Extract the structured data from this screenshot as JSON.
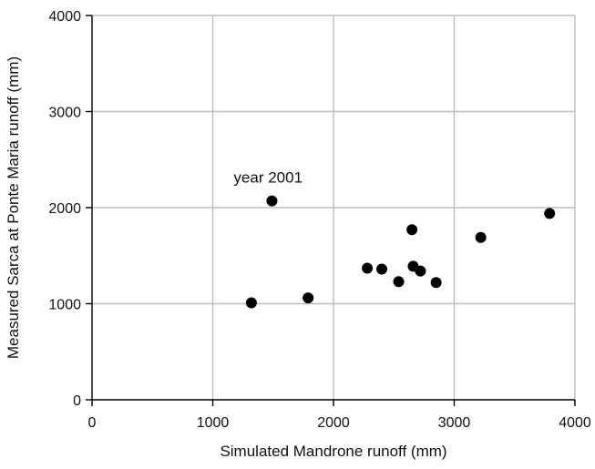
{
  "chart_data": {
    "type": "scatter",
    "xlabel": "Simulated Mandrone runoff (mm)",
    "ylabel": "Measured Sarca at Ponte Maria runoff (mm)",
    "xlim": [
      0,
      4000
    ],
    "ylim": [
      0,
      4000
    ],
    "xticks": [
      0,
      1000,
      2000,
      3000,
      4000
    ],
    "yticks": [
      0,
      1000,
      2000,
      3000,
      4000
    ],
    "grid": true,
    "marker_color": "#000000",
    "points": [
      {
        "x": 1320,
        "y": 1010
      },
      {
        "x": 1490,
        "y": 2070
      },
      {
        "x": 1790,
        "y": 1060
      },
      {
        "x": 2280,
        "y": 1370
      },
      {
        "x": 2400,
        "y": 1360
      },
      {
        "x": 2540,
        "y": 1230
      },
      {
        "x": 2650,
        "y": 1770
      },
      {
        "x": 2660,
        "y": 1390
      },
      {
        "x": 2720,
        "y": 1340
      },
      {
        "x": 2850,
        "y": 1220
      },
      {
        "x": 3220,
        "y": 1690
      },
      {
        "x": 3790,
        "y": 1940
      }
    ],
    "annotations": [
      {
        "text": "year 2001",
        "x": 1490,
        "y": 2070
      }
    ]
  }
}
